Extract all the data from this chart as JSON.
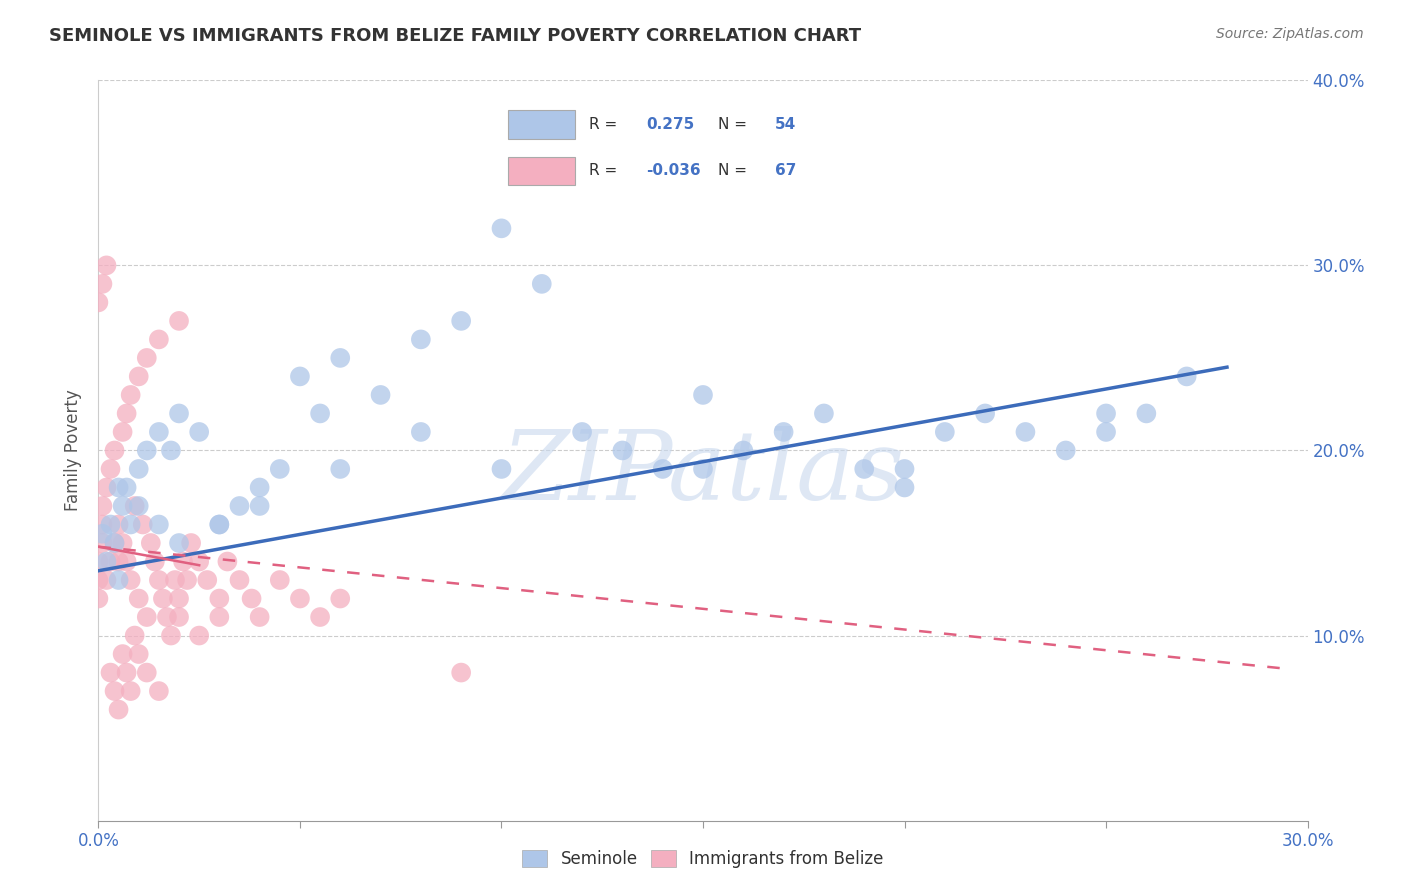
{
  "title": "SEMINOLE VS IMMIGRANTS FROM BELIZE FAMILY POVERTY CORRELATION CHART",
  "source": "Source: ZipAtlas.com",
  "ylabel": "Family Poverty",
  "r_seminole": 0.275,
  "n_seminole": 54,
  "r_belize": -0.036,
  "n_belize": 67,
  "xlim": [
    0,
    0.3
  ],
  "ylim": [
    0,
    0.4
  ],
  "color_seminole": "#aec6e8",
  "color_belize": "#f4afc0",
  "line_color_seminole": "#3c6bba",
  "line_color_belize": "#e06080",
  "background_color": "#ffffff",
  "watermark": "ZIPatlas",
  "seminole_x": [
    0.001,
    0.002,
    0.003,
    0.004,
    0.005,
    0.006,
    0.007,
    0.008,
    0.01,
    0.012,
    0.015,
    0.018,
    0.02,
    0.025,
    0.03,
    0.035,
    0.04,
    0.045,
    0.05,
    0.055,
    0.06,
    0.07,
    0.08,
    0.09,
    0.1,
    0.11,
    0.12,
    0.13,
    0.14,
    0.15,
    0.16,
    0.17,
    0.18,
    0.19,
    0.2,
    0.21,
    0.22,
    0.23,
    0.24,
    0.25,
    0.26,
    0.27,
    0.005,
    0.01,
    0.015,
    0.02,
    0.03,
    0.04,
    0.06,
    0.08,
    0.1,
    0.15,
    0.2,
    0.25
  ],
  "seminole_y": [
    0.155,
    0.14,
    0.16,
    0.15,
    0.13,
    0.17,
    0.18,
    0.16,
    0.19,
    0.2,
    0.21,
    0.2,
    0.22,
    0.21,
    0.16,
    0.17,
    0.18,
    0.19,
    0.24,
    0.22,
    0.25,
    0.23,
    0.26,
    0.27,
    0.32,
    0.29,
    0.21,
    0.2,
    0.19,
    0.23,
    0.2,
    0.21,
    0.22,
    0.19,
    0.18,
    0.21,
    0.22,
    0.21,
    0.2,
    0.22,
    0.22,
    0.24,
    0.18,
    0.17,
    0.16,
    0.15,
    0.16,
    0.17,
    0.19,
    0.21,
    0.19,
    0.19,
    0.19,
    0.21
  ],
  "belize_x": [
    0.0,
    0.0,
    0.0,
    0.001,
    0.001,
    0.001,
    0.002,
    0.002,
    0.003,
    0.003,
    0.004,
    0.004,
    0.005,
    0.005,
    0.006,
    0.006,
    0.007,
    0.007,
    0.008,
    0.008,
    0.009,
    0.01,
    0.01,
    0.011,
    0.012,
    0.012,
    0.013,
    0.014,
    0.015,
    0.015,
    0.016,
    0.017,
    0.018,
    0.019,
    0.02,
    0.02,
    0.021,
    0.022,
    0.023,
    0.025,
    0.027,
    0.03,
    0.032,
    0.035,
    0.038,
    0.04,
    0.045,
    0.05,
    0.055,
    0.06,
    0.0,
    0.001,
    0.002,
    0.003,
    0.004,
    0.005,
    0.006,
    0.007,
    0.008,
    0.009,
    0.01,
    0.012,
    0.015,
    0.02,
    0.025,
    0.03,
    0.09
  ],
  "belize_y": [
    0.14,
    0.13,
    0.12,
    0.15,
    0.16,
    0.17,
    0.13,
    0.18,
    0.14,
    0.19,
    0.15,
    0.2,
    0.14,
    0.16,
    0.15,
    0.21,
    0.22,
    0.14,
    0.13,
    0.23,
    0.17,
    0.12,
    0.24,
    0.16,
    0.11,
    0.25,
    0.15,
    0.14,
    0.13,
    0.26,
    0.12,
    0.11,
    0.1,
    0.13,
    0.12,
    0.27,
    0.14,
    0.13,
    0.15,
    0.14,
    0.13,
    0.12,
    0.14,
    0.13,
    0.12,
    0.11,
    0.13,
    0.12,
    0.11,
    0.12,
    0.28,
    0.29,
    0.3,
    0.08,
    0.07,
    0.06,
    0.09,
    0.08,
    0.07,
    0.1,
    0.09,
    0.08,
    0.07,
    0.11,
    0.1,
    0.11,
    0.08
  ],
  "trend_seminole_x0": 0.0,
  "trend_seminole_x1": 0.28,
  "trend_seminole_y0": 0.135,
  "trend_seminole_y1": 0.245,
  "trend_belize_solid_x0": 0.0,
  "trend_belize_solid_x1": 0.025,
  "trend_belize_y0": 0.148,
  "trend_belize_y1": 0.138,
  "trend_belize_dash_x0": 0.0,
  "trend_belize_dash_x1": 0.295,
  "trend_belize_dash_y0": 0.148,
  "trend_belize_dash_y1": 0.082
}
